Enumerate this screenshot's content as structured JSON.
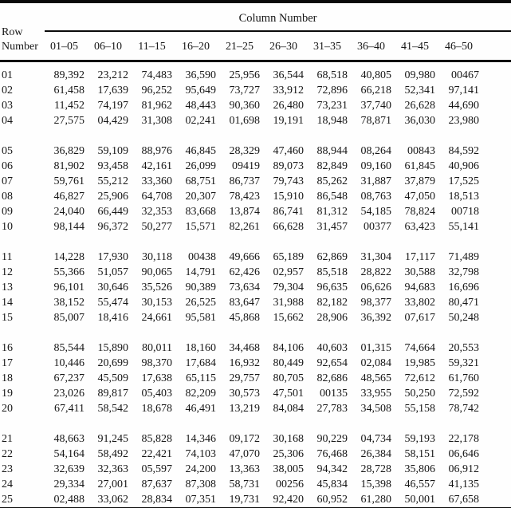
{
  "header": {
    "column_group_title": "Column Number",
    "row_label_line1": "Row",
    "row_label_line2": "Number"
  },
  "table": {
    "columns": [
      "01–05",
      "06–10",
      "11–15",
      "16–20",
      "21–25",
      "26–30",
      "31–35",
      "36–40",
      "41–45",
      "46–50"
    ],
    "groups": [
      {
        "rows": [
          {
            "row": "01",
            "values": [
              "89,392",
              "23,212",
              "74,483",
              "36,590",
              "25,956",
              "36,544",
              "68,518",
              "40,805",
              "09,980",
              "00467"
            ]
          },
          {
            "row": "02",
            "values": [
              "61,458",
              "17,639",
              "96,252",
              "95,649",
              "73,727",
              "33,912",
              "72,896",
              "66,218",
              "52,341",
              "97,141"
            ]
          },
          {
            "row": "03",
            "values": [
              "11,452",
              "74,197",
              "81,962",
              "48,443",
              "90,360",
              "26,480",
              "73,231",
              "37,740",
              "26,628",
              "44,690"
            ]
          },
          {
            "row": "04",
            "values": [
              "27,575",
              "04,429",
              "31,308",
              "02,241",
              "01,698",
              "19,191",
              "18,948",
              "78,871",
              "36,030",
              "23,980"
            ]
          }
        ]
      },
      {
        "rows": [
          {
            "row": "05",
            "values": [
              "36,829",
              "59,109",
              "88,976",
              "46,845",
              "28,329",
              "47,460",
              "88,944",
              "08,264",
              "00843",
              "84,592"
            ]
          },
          {
            "row": "06",
            "values": [
              "81,902",
              "93,458",
              "42,161",
              "26,099",
              "09419",
              "89,073",
              "82,849",
              "09,160",
              "61,845",
              "40,906"
            ]
          },
          {
            "row": "07",
            "values": [
              "59,761",
              "55,212",
              "33,360",
              "68,751",
              "86,737",
              "79,743",
              "85,262",
              "31,887",
              "37,879",
              "17,525"
            ]
          },
          {
            "row": "08",
            "values": [
              "46,827",
              "25,906",
              "64,708",
              "20,307",
              "78,423",
              "15,910",
              "86,548",
              "08,763",
              "47,050",
              "18,513"
            ]
          },
          {
            "row": "09",
            "values": [
              "24,040",
              "66,449",
              "32,353",
              "83,668",
              "13,874",
              "86,741",
              "81,312",
              "54,185",
              "78,824",
              "00718"
            ]
          },
          {
            "row": "10",
            "values": [
              "98,144",
              "96,372",
              "50,277",
              "15,571",
              "82,261",
              "66,628",
              "31,457",
              "00377",
              "63,423",
              "55,141"
            ]
          }
        ]
      },
      {
        "rows": [
          {
            "row": "11",
            "values": [
              "14,228",
              "17,930",
              "30,118",
              "00438",
              "49,666",
              "65,189",
              "62,869",
              "31,304",
              "17,117",
              "71,489"
            ]
          },
          {
            "row": "12",
            "values": [
              "55,366",
              "51,057",
              "90,065",
              "14,791",
              "62,426",
              "02,957",
              "85,518",
              "28,822",
              "30,588",
              "32,798"
            ]
          },
          {
            "row": "13",
            "values": [
              "96,101",
              "30,646",
              "35,526",
              "90,389",
              "73,634",
              "79,304",
              "96,635",
              "06,626",
              "94,683",
              "16,696"
            ]
          },
          {
            "row": "14",
            "values": [
              "38,152",
              "55,474",
              "30,153",
              "26,525",
              "83,647",
              "31,988",
              "82,182",
              "98,377",
              "33,802",
              "80,471"
            ]
          },
          {
            "row": "15",
            "values": [
              "85,007",
              "18,416",
              "24,661",
              "95,581",
              "45,868",
              "15,662",
              "28,906",
              "36,392",
              "07,617",
              "50,248"
            ]
          }
        ]
      },
      {
        "rows": [
          {
            "row": "16",
            "values": [
              "85,544",
              "15,890",
              "80,011",
              "18,160",
              "34,468",
              "84,106",
              "40,603",
              "01,315",
              "74,664",
              "20,553"
            ]
          },
          {
            "row": "17",
            "values": [
              "10,446",
              "20,699",
              "98,370",
              "17,684",
              "16,932",
              "80,449",
              "92,654",
              "02,084",
              "19,985",
              "59,321"
            ]
          },
          {
            "row": "18",
            "values": [
              "67,237",
              "45,509",
              "17,638",
              "65,115",
              "29,757",
              "80,705",
              "82,686",
              "48,565",
              "72,612",
              "61,760"
            ]
          },
          {
            "row": "19",
            "values": [
              "23,026",
              "89,817",
              "05,403",
              "82,209",
              "30,573",
              "47,501",
              "00135",
              "33,955",
              "50,250",
              "72,592"
            ]
          },
          {
            "row": "20",
            "values": [
              "67,411",
              "58,542",
              "18,678",
              "46,491",
              "13,219",
              "84,084",
              "27,783",
              "34,508",
              "55,158",
              "78,742"
            ]
          }
        ]
      },
      {
        "rows": [
          {
            "row": "21",
            "values": [
              "48,663",
              "91,245",
              "85,828",
              "14,346",
              "09,172",
              "30,168",
              "90,229",
              "04,734",
              "59,193",
              "22,178"
            ]
          },
          {
            "row": "22",
            "values": [
              "54,164",
              "58,492",
              "22,421",
              "74,103",
              "47,070",
              "25,306",
              "76,468",
              "26,384",
              "58,151",
              "06,646"
            ]
          },
          {
            "row": "23",
            "values": [
              "32,639",
              "32,363",
              "05,597",
              "24,200",
              "13,363",
              "38,005",
              "94,342",
              "28,728",
              "35,806",
              "06,912"
            ]
          },
          {
            "row": "24",
            "values": [
              "29,334",
              "27,001",
              "87,637",
              "87,308",
              "58,731",
              "00256",
              "45,834",
              "15,398",
              "46,557",
              "41,135"
            ]
          },
          {
            "row": "25",
            "values": [
              "02,488",
              "33,062",
              "28,834",
              "07,351",
              "19,731",
              "92,420",
              "60,952",
              "61,280",
              "50,001",
              "67,658"
            ]
          }
        ]
      }
    ]
  }
}
